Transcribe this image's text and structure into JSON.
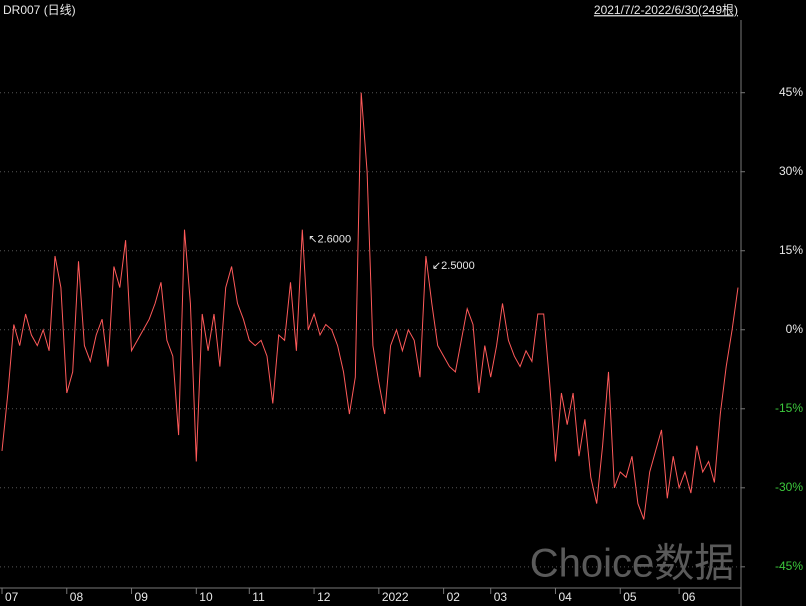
{
  "chart_data": {
    "type": "line",
    "title": "DR007 (日线)",
    "range_label": "2021/7/2-2022/6/30(249根)",
    "watermark": "Choice数据",
    "color": "#ff5a5a",
    "up_label_color": "#e8e8e8",
    "down_label_color": "#3cc83c",
    "grid": true,
    "ylim": [
      -49.4,
      58.8
    ],
    "yticks": [
      {
        "value": 45,
        "label": "45%"
      },
      {
        "value": 30,
        "label": "30%"
      },
      {
        "value": 15,
        "label": "15%"
      },
      {
        "value": 0,
        "label": "0%"
      },
      {
        "value": -15,
        "label": "-15%"
      },
      {
        "value": -30,
        "label": "-30%"
      },
      {
        "value": -45,
        "label": "-45%"
      }
    ],
    "xticks": [
      {
        "value": 0,
        "label": "07"
      },
      {
        "value": 11,
        "label": "08"
      },
      {
        "value": 22,
        "label": "09"
      },
      {
        "value": 33,
        "label": "10"
      },
      {
        "value": 42,
        "label": "11"
      },
      {
        "value": 53,
        "label": "12"
      },
      {
        "value": 64,
        "label": "2022"
      },
      {
        "value": 75,
        "label": "02"
      },
      {
        "value": 83,
        "label": "03"
      },
      {
        "value": 94,
        "label": "04"
      },
      {
        "value": 105,
        "label": "05"
      },
      {
        "value": 115,
        "label": "06"
      }
    ],
    "annotations": [
      {
        "index": 51,
        "text": "↖2.6000"
      },
      {
        "index": 72,
        "text": "↙2.5000"
      }
    ],
    "values": [
      -23,
      -12,
      1,
      -3,
      3,
      -1,
      -3,
      0,
      -4,
      14,
      8,
      -12,
      -8,
      13,
      -3,
      -6,
      -1,
      2,
      -7,
      12,
      8,
      17,
      -4,
      -2,
      0,
      2,
      5,
      9,
      -2,
      -5,
      -20,
      19,
      5,
      -25,
      3,
      -4,
      3,
      -7,
      8,
      12,
      5,
      2,
      -2,
      -3,
      -2,
      -5,
      -14,
      -1,
      -2,
      9,
      -4,
      19,
      0,
      3,
      -1,
      1,
      0,
      -3,
      -8,
      -16,
      -9,
      45,
      30,
      -3,
      -10,
      -16,
      -3,
      0,
      -4,
      0,
      -2,
      -9,
      14,
      5,
      -3,
      -5,
      -7,
      -8,
      -2,
      4,
      1,
      -12,
      -3,
      -9,
      -3,
      5,
      -2,
      -5,
      -7,
      -4,
      -6,
      3,
      3,
      -10,
      -25,
      -12,
      -18,
      -12,
      -24,
      -17,
      -28,
      -33,
      -22,
      -8,
      -30,
      -27,
      -28,
      -24,
      -33,
      -36,
      -27,
      -23,
      -19,
      -32,
      -24,
      -30,
      -27,
      -31,
      -22,
      -27,
      -25,
      -29,
      -16,
      -7,
      0,
      8
    ]
  }
}
